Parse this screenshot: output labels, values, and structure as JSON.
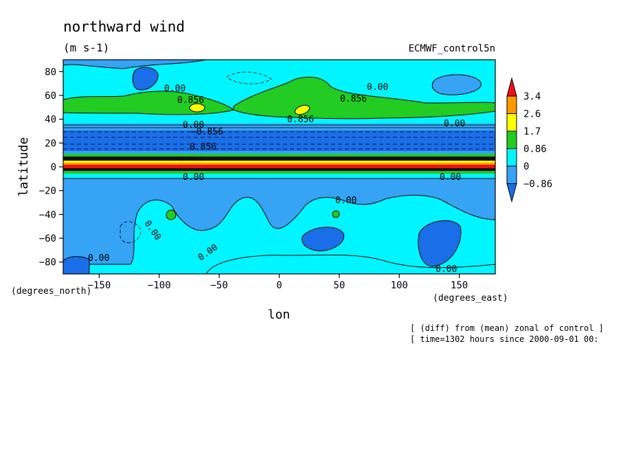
{
  "chart_data": {
    "type": "heatmap",
    "title": "northward wind",
    "units": "(m s-1)",
    "dataset": "ECMWF_control5n",
    "xlabel": "lon",
    "ylabel": "latitude",
    "xunits": "(degrees_east)",
    "yunits": "(degrees_north)",
    "xlim": [
      -180,
      180
    ],
    "ylim": [
      -90,
      90
    ],
    "xticks": [
      -150,
      -100,
      -50,
      0,
      50,
      100,
      150
    ],
    "yticks": [
      80,
      60,
      40,
      20,
      0,
      -20,
      -40,
      -60,
      -80
    ],
    "xtick_labels": [
      "−150",
      "−100",
      "−50",
      "0",
      "50",
      "100",
      "150"
    ],
    "ytick_labels": [
      "80",
      "60",
      "40",
      "20",
      "0",
      "−20",
      "−40",
      "−60",
      "−80"
    ],
    "colorbar": {
      "levels": [
        -0.86,
        0,
        0.86,
        1.7,
        2.6,
        3.4
      ],
      "labels": [
        "−0.86",
        "0",
        "0.86",
        "1.7",
        "2.6",
        "3.4"
      ],
      "colors": [
        "#1a6fe8",
        "#36a3f5",
        "#00f5ff",
        "#22cc22",
        "#ffff00",
        "#ff9900",
        "#ee1111"
      ]
    },
    "contour_labels": [
      "0.00",
      "0.856",
      "−0.856"
    ],
    "notes": [
      "[ (diff) from (mean) zonal of control ]",
      "[ time=1302 hours since 2000-09-01 00:"
    ]
  }
}
